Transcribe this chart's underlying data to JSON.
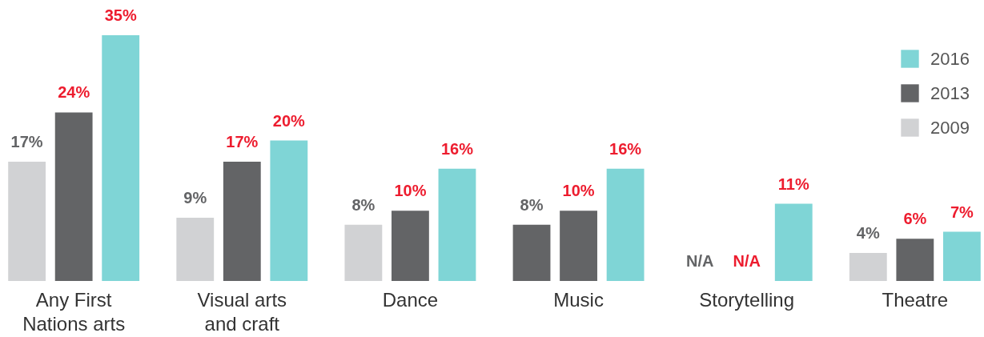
{
  "chart_data": {
    "type": "bar",
    "categories": [
      "Any First Nations arts",
      "Visual arts and craft",
      "Dance",
      "Music",
      "Storytelling",
      "Theatre"
    ],
    "series": [
      {
        "name": "2009",
        "color": "#d1d2d4",
        "colors": [
          "#d1d2d4",
          "#d1d2d4",
          "#d1d2d4",
          "#636466",
          "#d1d2d4",
          "#d1d2d4"
        ],
        "values": [
          17,
          9,
          8,
          8,
          null,
          4
        ],
        "value_labels": [
          "17%",
          "9%",
          "8%",
          "8%",
          "N/A",
          "4%"
        ]
      },
      {
        "name": "2013",
        "color": "#636466",
        "values": [
          24,
          17,
          10,
          10,
          null,
          6
        ],
        "value_labels": [
          "24%",
          "17%",
          "10%",
          "10%",
          "N/A",
          "6%"
        ]
      },
      {
        "name": "2016",
        "color": "#7fd5d6",
        "values": [
          35,
          20,
          16,
          16,
          11,
          7
        ],
        "value_labels": [
          "35%",
          "20%",
          "16%",
          "16%",
          "11%",
          "7%"
        ]
      }
    ],
    "legend": "top right"
  }
}
